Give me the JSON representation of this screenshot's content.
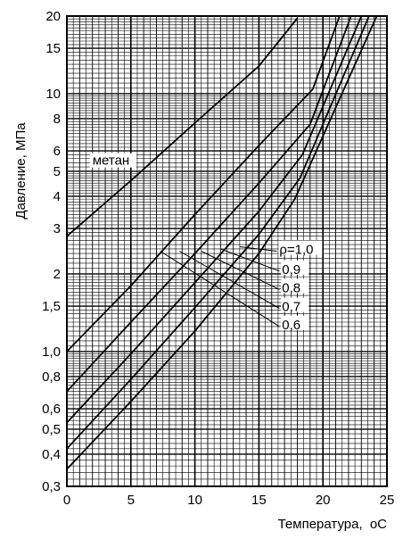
{
  "chart_data": {
    "type": "line",
    "title": "",
    "xlabel": "Температура,",
    "xlabel_unit": "oC",
    "ylabel": "Давление, МПа",
    "xlim": [
      0,
      25
    ],
    "ylim": [
      0.3,
      20
    ],
    "y_scale": "log",
    "grid": true,
    "x_ticks": [
      "0",
      "5",
      "10",
      "15",
      "20",
      "25"
    ],
    "y_ticks": [
      {
        "v": 0.3,
        "label": "0,3"
      },
      {
        "v": 0.4,
        "label": "0,4"
      },
      {
        "v": 0.5,
        "label": "0,5"
      },
      {
        "v": 0.6,
        "label": "0,6"
      },
      {
        "v": 0.8,
        "label": "0,8"
      },
      {
        "v": 1.0,
        "label": "1,0"
      },
      {
        "v": 1.5,
        "label": "1,5"
      },
      {
        "v": 2,
        "label": "2"
      },
      {
        "v": 3,
        "label": "3"
      },
      {
        "v": 4,
        "label": "4"
      },
      {
        "v": 5,
        "label": "5"
      },
      {
        "v": 6,
        "label": "6"
      },
      {
        "v": 8,
        "label": "8"
      },
      {
        "v": 10,
        "label": "10"
      },
      {
        "v": 15,
        "label": "15"
      },
      {
        "v": 20,
        "label": "20"
      }
    ],
    "series": [
      {
        "name": "метан",
        "x": [
          0,
          5,
          10,
          15,
          18.0
        ],
        "y": [
          2.8,
          4.6,
          7.7,
          12.8,
          19.6
        ],
        "label_at": {
          "x": 2.0,
          "y": 5.3
        }
      },
      {
        "name": "ρ=1,0",
        "x": [
          0,
          5,
          10,
          15,
          19.2,
          21.3
        ],
        "y": [
          1.0,
          1.8,
          3.4,
          6.3,
          10.4,
          20.0
        ]
      },
      {
        "name": "0,9",
        "x": [
          0,
          5,
          10,
          15,
          19.0,
          22.2
        ],
        "y": [
          0.7,
          1.3,
          2.4,
          4.5,
          7.6,
          20.0
        ]
      },
      {
        "name": "0,8",
        "x": [
          0,
          5,
          10,
          15,
          18.4,
          23.0
        ],
        "y": [
          0.53,
          0.98,
          1.85,
          3.5,
          5.8,
          20.0
        ]
      },
      {
        "name": "0,7",
        "x": [
          0,
          5,
          10,
          15,
          18.2,
          23.6
        ],
        "y": [
          0.42,
          0.78,
          1.48,
          2.85,
          4.7,
          20.0
        ]
      },
      {
        "name": "0,6",
        "x": [
          0,
          5,
          10,
          15,
          17.8,
          24.2
        ],
        "y": [
          0.35,
          0.64,
          1.2,
          2.4,
          3.9,
          20.0
        ]
      }
    ],
    "annotations": [
      {
        "text": "ρ=1,0",
        "label_x": 16.6,
        "label_y": 2.45,
        "leader": [
          [
            16.4,
            2.45
          ],
          [
            13.5,
            2.55
          ]
        ]
      },
      {
        "text": "0,9",
        "label_x": 16.8,
        "label_y": 2.05,
        "leader": [
          [
            16.6,
            2.05
          ],
          [
            12.0,
            2.5
          ]
        ]
      },
      {
        "text": "0,8",
        "label_x": 16.8,
        "label_y": 1.74,
        "leader": [
          [
            16.6,
            1.74
          ],
          [
            10.5,
            2.45
          ]
        ]
      },
      {
        "text": "0,7",
        "label_x": 16.8,
        "label_y": 1.47,
        "leader": [
          [
            16.6,
            1.47
          ],
          [
            8.8,
            2.45
          ]
        ]
      },
      {
        "text": "0,6",
        "label_x": 16.8,
        "label_y": 1.25,
        "leader": [
          [
            16.6,
            1.25
          ],
          [
            7.3,
            2.45
          ]
        ]
      }
    ]
  }
}
